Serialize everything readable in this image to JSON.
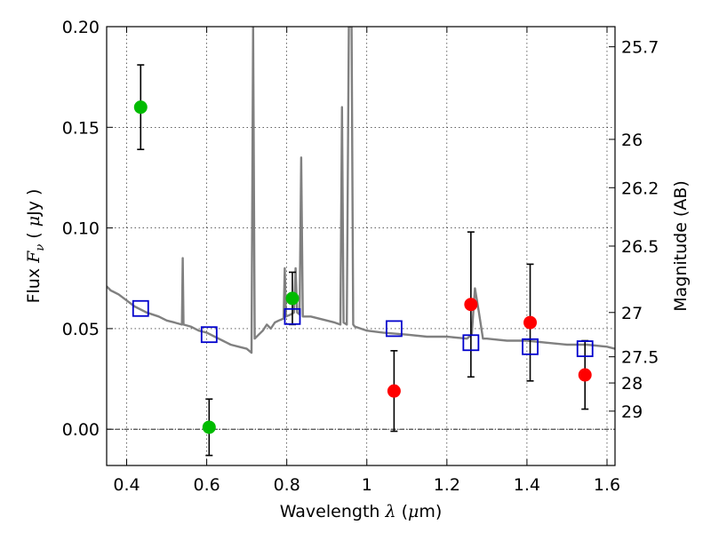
{
  "chart_data": {
    "type": "scatter",
    "xlabel": "Wavelength",
    "xlabel_symbol": "λ",
    "xlabel_unit_open": " (",
    "xlabel_unit_mu": "μ",
    "xlabel_unit_close": "m)",
    "ylabel": "Flux",
    "ylabel_symbol": "F",
    "ylabel_sub": "ν",
    "ylabel_unit_open": "(",
    "ylabel_unit_mu": "μ",
    "ylabel_unit_close": "Jy )",
    "y2label": "Magnitude (AB)",
    "xlim": [
      0.35,
      1.62
    ],
    "ylim": [
      -0.018,
      0.2
    ],
    "grid": true,
    "x_ticks": [
      0.4,
      0.6,
      0.8,
      1.0,
      1.2,
      1.4,
      1.6
    ],
    "x_tick_labels": [
      "0.4",
      "0.6",
      "0.8",
      "1",
      "1.2",
      "1.4",
      "1.6"
    ],
    "y_ticks": [
      0.0,
      0.05,
      0.1,
      0.15,
      0.2
    ],
    "y_tick_labels": [
      "0.00",
      "0.05",
      "0.10",
      "0.15",
      "0.20"
    ],
    "y2_ticks": [
      {
        "label": "25.7",
        "flux": 0.19
      },
      {
        "label": "26",
        "flux": 0.144
      },
      {
        "label": "26.2",
        "flux": 0.12
      },
      {
        "label": "26.5",
        "flux": 0.091
      },
      {
        "label": "27",
        "flux": 0.058
      },
      {
        "label": "27.5",
        "flux": 0.036
      },
      {
        "label": "28",
        "flux": 0.023
      },
      {
        "label": "29",
        "flux": 0.009
      }
    ],
    "series": [
      {
        "marker": "filled-circle",
        "color": "#00bb00",
        "points": [
          {
            "x": 0.435,
            "y": 0.16,
            "err": 0.021
          },
          {
            "x": 0.606,
            "y": 0.001,
            "err": 0.014
          },
          {
            "x": 0.814,
            "y": 0.065,
            "err": 0.013
          }
        ]
      },
      {
        "marker": "filled-circle",
        "color": "#ff0000",
        "points": [
          {
            "x": 1.068,
            "y": 0.019,
            "err": 0.02
          },
          {
            "x": 1.26,
            "y": 0.062,
            "err": 0.036
          },
          {
            "x": 1.408,
            "y": 0.053,
            "err": 0.029
          },
          {
            "x": 1.545,
            "y": 0.027,
            "err": 0.017
          }
        ]
      },
      {
        "marker": "open-square",
        "color": "#0000cc",
        "points": [
          {
            "x": 0.435,
            "y": 0.06
          },
          {
            "x": 0.606,
            "y": 0.047
          },
          {
            "x": 0.814,
            "y": 0.056
          },
          {
            "x": 1.068,
            "y": 0.05
          },
          {
            "x": 1.26,
            "y": 0.043
          },
          {
            "x": 1.408,
            "y": 0.041
          },
          {
            "x": 1.545,
            "y": 0.04
          }
        ]
      }
    ],
    "sed": {
      "color": "#808080",
      "points": [
        [
          0.35,
          0.071
        ],
        [
          0.36,
          0.069
        ],
        [
          0.38,
          0.067
        ],
        [
          0.4,
          0.064
        ],
        [
          0.42,
          0.061
        ],
        [
          0.45,
          0.058
        ],
        [
          0.48,
          0.056
        ],
        [
          0.5,
          0.054
        ],
        [
          0.52,
          0.053
        ],
        [
          0.538,
          0.052
        ],
        [
          0.54,
          0.085
        ],
        [
          0.542,
          0.052
        ],
        [
          0.56,
          0.051
        ],
        [
          0.58,
          0.049
        ],
        [
          0.6,
          0.048
        ],
        [
          0.62,
          0.046
        ],
        [
          0.64,
          0.044
        ],
        [
          0.66,
          0.042
        ],
        [
          0.68,
          0.041
        ],
        [
          0.7,
          0.04
        ],
        [
          0.712,
          0.038
        ],
        [
          0.716,
          0.2
        ],
        [
          0.72,
          0.045
        ],
        [
          0.73,
          0.047
        ],
        [
          0.74,
          0.049
        ],
        [
          0.75,
          0.052
        ],
        [
          0.76,
          0.05
        ],
        [
          0.77,
          0.053
        ],
        [
          0.78,
          0.054
        ],
        [
          0.792,
          0.055
        ],
        [
          0.795,
          0.08
        ],
        [
          0.798,
          0.056
        ],
        [
          0.81,
          0.057
        ],
        [
          0.818,
          0.058
        ],
        [
          0.822,
          0.08
        ],
        [
          0.826,
          0.058
        ],
        [
          0.832,
          0.057
        ],
        [
          0.836,
          0.135
        ],
        [
          0.84,
          0.056
        ],
        [
          0.86,
          0.056
        ],
        [
          0.88,
          0.055
        ],
        [
          0.9,
          0.054
        ],
        [
          0.92,
          0.053
        ],
        [
          0.934,
          0.052
        ],
        [
          0.938,
          0.16
        ],
        [
          0.942,
          0.053
        ],
        [
          0.95,
          0.052
        ],
        [
          0.955,
          0.2
        ],
        [
          0.962,
          0.2
        ],
        [
          0.966,
          0.052
        ],
        [
          0.97,
          0.051
        ],
        [
          1.0,
          0.049
        ],
        [
          1.04,
          0.048
        ],
        [
          1.1,
          0.047
        ],
        [
          1.15,
          0.046
        ],
        [
          1.2,
          0.046
        ],
        [
          1.25,
          0.045
        ],
        [
          1.262,
          0.047
        ],
        [
          1.27,
          0.07
        ],
        [
          1.28,
          0.058
        ],
        [
          1.29,
          0.045
        ],
        [
          1.3,
          0.045
        ],
        [
          1.35,
          0.044
        ],
        [
          1.4,
          0.044
        ],
        [
          1.45,
          0.043
        ],
        [
          1.5,
          0.042
        ],
        [
          1.55,
          0.042
        ],
        [
          1.6,
          0.041
        ],
        [
          1.62,
          0.04
        ]
      ]
    }
  }
}
